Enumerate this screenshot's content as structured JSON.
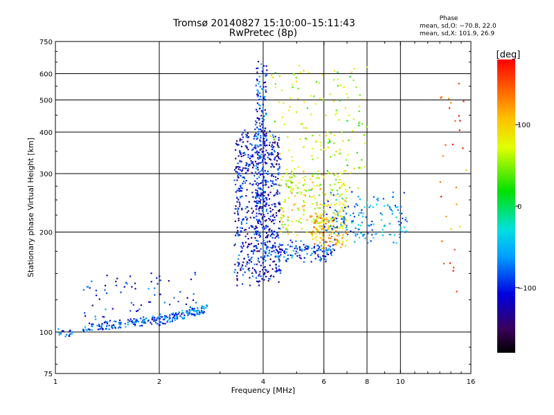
{
  "header": {
    "title_line1": "Tromsø 20140827 15:10:00–15:11:43",
    "title_line2": "RwPretec (8p)",
    "stats_title": "Phase",
    "stats_o": "mean, sd,O: −70.8, 22.0",
    "stats_x": "mean, sd,X: 101.9, 26.9"
  },
  "chart_data": {
    "type": "scatter",
    "title": "Tromsø 20140827 15:10:00–15:11:43",
    "subtitle": "RwPretec (8p)",
    "xlabel": "Frequency [MHz]",
    "ylabel": "Stationary phase Virtual Height [km]",
    "xscale": "log",
    "yscale": "log",
    "xlim": [
      1,
      16
    ],
    "ylim": [
      75,
      750
    ],
    "xticks": [
      1,
      2,
      4,
      6,
      8,
      10,
      16
    ],
    "xtick_labels": [
      "1",
      "2",
      "4",
      "6",
      "8",
      "10",
      "16"
    ],
    "yticks": [
      75,
      100,
      200,
      300,
      400,
      500,
      600,
      750
    ],
    "ytick_labels": [
      "75",
      "100",
      "200",
      "300",
      "400",
      "500",
      "600",
      "750"
    ],
    "x_gridlines": [
      2,
      4,
      6,
      8,
      10
    ],
    "y_gridlines": [
      100,
      200,
      300,
      400,
      500,
      600
    ],
    "grid": true,
    "colorbar": {
      "label": "[deg]",
      "range": [
        -180,
        180
      ],
      "ticks": [
        100,
        0,
        -100
      ],
      "tick_labels": [
        "100",
        "0",
        "−100"
      ],
      "colormap": "rainbow",
      "placement": "right"
    },
    "clusters": [
      {
        "x": [
          1.0,
          1.12
        ],
        "y": [
          100,
          99
        ],
        "phase": -80,
        "n": 18
      },
      {
        "x": [
          1.2,
          2.0
        ],
        "y": [
          103,
          109
        ],
        "phase": -85,
        "n": 130
      },
      {
        "x": [
          2.0,
          2.75
        ],
        "y": [
          108,
          118
        ],
        "phase": -75,
        "n": 120
      },
      {
        "x": [
          1.2,
          2.6
        ],
        "y": [
          110,
          150
        ],
        "phase": -100,
        "n": 70
      },
      {
        "x": [
          3.3,
          4.5
        ],
        "y": [
          140,
          400
        ],
        "phase": -110,
        "n": 650
      },
      {
        "x": [
          3.8,
          4.1
        ],
        "y": [
          200,
          650
        ],
        "phase": -95,
        "n": 220
      },
      {
        "x": [
          4.0,
          6.5
        ],
        "y": [
          165,
          185
        ],
        "phase": -90,
        "n": 160
      },
      {
        "x": [
          4.5,
          7.0
        ],
        "y": [
          200,
          300
        ],
        "phase": 80,
        "n": 220
      },
      {
        "x": [
          5.5,
          7.0
        ],
        "y": [
          180,
          220
        ],
        "phase": 110,
        "n": 120
      },
      {
        "x": [
          6.0,
          10.5
        ],
        "y": [
          190,
          260
        ],
        "phase": -60,
        "n": 160
      },
      {
        "x": [
          4.2,
          8.0
        ],
        "y": [
          260,
          620
        ],
        "phase": 60,
        "n": 170
      },
      {
        "x": [
          13.0,
          15.5
        ],
        "y": [
          120,
          600
        ],
        "phase": 140,
        "n": 30
      }
    ]
  }
}
